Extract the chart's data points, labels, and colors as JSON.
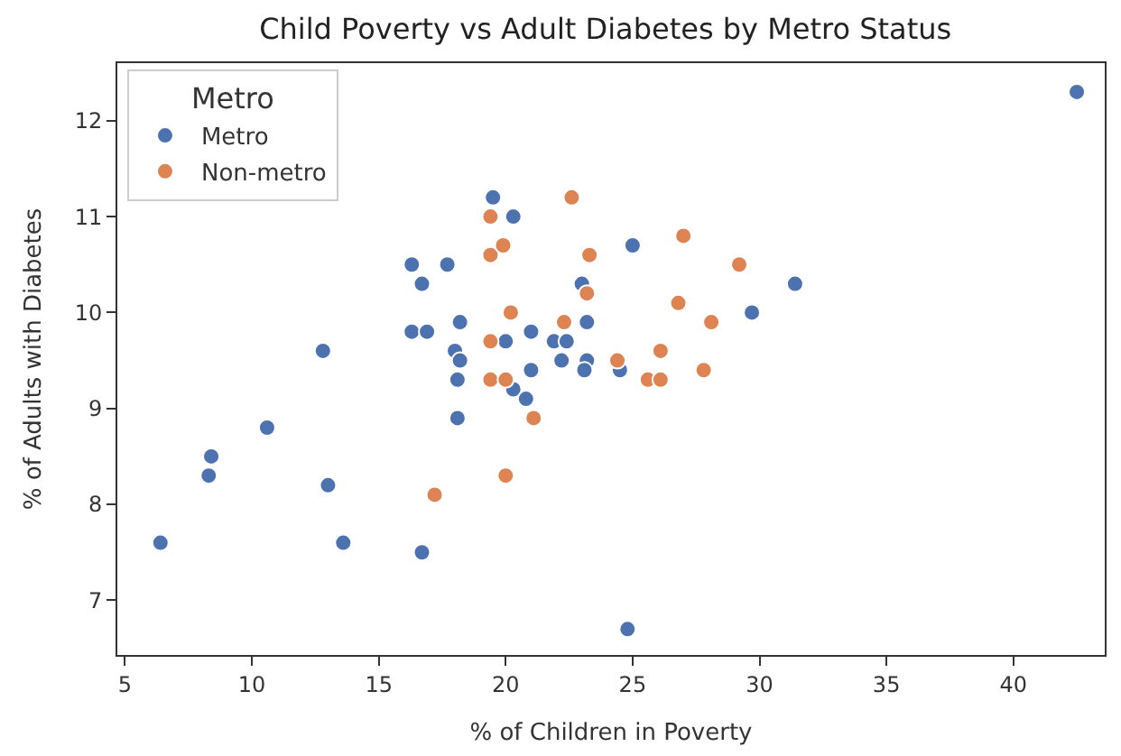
{
  "chart_data": {
    "type": "scatter",
    "title": "Child Poverty vs Adult Diabetes by Metro Status",
    "xlabel": "% of Children in Poverty",
    "ylabel": "% of Adults with Diabetes",
    "legend_title": "Metro",
    "legend": "top left",
    "marker": "circle",
    "xlim": [
      4.7,
      43.6
    ],
    "ylim": [
      6.43,
      12.6
    ],
    "xticks": [
      5,
      10,
      15,
      20,
      25,
      30,
      35,
      40
    ],
    "yticks": [
      7,
      8,
      9,
      10,
      11,
      12
    ],
    "series": [
      {
        "name": "Metro",
        "color": "#4c72b0",
        "x": [
          6.4,
          8.3,
          8.4,
          10.6,
          12.8,
          13.0,
          13.6,
          16.3,
          16.3,
          16.7,
          16.9,
          16.7,
          17.7,
          18.0,
          18.1,
          18.1,
          18.2,
          18.2,
          19.5,
          20.0,
          20.3,
          20.3,
          20.8,
          21.0,
          21.0,
          21.9,
          22.4,
          22.2,
          23.0,
          23.2,
          23.2,
          23.1,
          24.5,
          24.8,
          25.0,
          29.7,
          31.4,
          42.5
        ],
        "values": [
          7.6,
          8.3,
          8.5,
          8.8,
          9.6,
          8.2,
          7.6,
          10.5,
          9.8,
          10.3,
          9.8,
          7.5,
          10.5,
          9.6,
          9.3,
          8.9,
          9.9,
          9.5,
          11.2,
          9.7,
          11.0,
          9.2,
          9.1,
          9.8,
          9.4,
          9.7,
          9.7,
          9.5,
          10.3,
          9.9,
          9.5,
          9.4,
          9.4,
          6.7,
          10.7,
          10.0,
          10.3,
          12.3
        ]
      },
      {
        "name": "Non-metro",
        "color": "#dd8452",
        "x": [
          17.2,
          19.4,
          19.4,
          19.9,
          19.4,
          19.4,
          20.0,
          20.2,
          20.0,
          21.1,
          22.3,
          22.6,
          23.2,
          23.3,
          24.4,
          25.6,
          26.1,
          26.1,
          26.8,
          27.0,
          27.8,
          28.1,
          29.2
        ],
        "values": [
          8.1,
          11.0,
          10.6,
          10.7,
          9.7,
          9.3,
          9.3,
          10.0,
          8.3,
          8.9,
          9.9,
          11.2,
          10.2,
          10.6,
          9.5,
          9.3,
          9.3,
          9.6,
          10.1,
          10.8,
          9.4,
          9.9,
          10.5
        ]
      }
    ]
  }
}
